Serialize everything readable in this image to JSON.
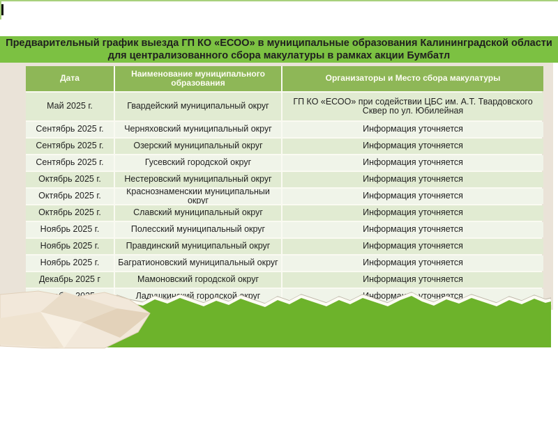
{
  "colors": {
    "top-strip": "#a8d07c",
    "title-band": "#7cc142",
    "table-header": "#8eb757",
    "header-text": "#fcfcf2",
    "row-odd": "#e1ebd2",
    "row-even": "#f0f4e9",
    "backdrop": "#eae3d8",
    "torn-green": "#6db32b",
    "text": "#1f1f1f",
    "paper-base": "#f2e8da",
    "paper-mid": "#e9dcc8",
    "paper-dark": "#e3d2ba",
    "paper-light": "#f7efe2"
  },
  "title": {
    "line1": "Предварительный график выезда ГП КО «ЕСОО» в муниципальные образования Калининградской области",
    "line2": "для централизованного сбора макулатуры в рамках акции Бумбатл"
  },
  "table": {
    "headers": [
      "Дата",
      "Наименование муниципального образования",
      "Организаторы и Место сбора макулатуры"
    ],
    "rows": [
      {
        "date": "Май 2025 г.",
        "municipality": "Гвардейский муниципальный округ",
        "org": [
          "ГП КО «ЕСОО» при содействии ЦБС им. А.Т. Твардовского",
          "Сквер по ул. Юбилейная"
        ]
      },
      {
        "date": "Сентябрь 2025 г.",
        "municipality": "Черняховский муниципальный округ",
        "org": [
          "Информация уточняется"
        ]
      },
      {
        "date": "Сентябрь 2025 г.",
        "municipality": "Озерский муниципальный округ",
        "org": [
          "Информация уточняется"
        ]
      },
      {
        "date": "Сентябрь 2025 г.",
        "municipality": "Гусевский городской округ",
        "org": [
          "Информация уточняется"
        ]
      },
      {
        "date": "Октябрь 2025 г.",
        "municipality": "Нестеровский  муниципальный округ",
        "org": [
          "Информация уточняется"
        ]
      },
      {
        "date": "Октябрь 2025 г.",
        "municipality": "Краснознаменский муниципальный округ",
        "org": [
          "Информация уточняется"
        ]
      },
      {
        "date": "Октябрь 2025 г.",
        "municipality": "Славский муниципальный округ",
        "org": [
          "Информация уточняется"
        ]
      },
      {
        "date": "Ноябрь 2025 г.",
        "municipality": "Полесский муниципальный округ",
        "org": [
          "Информация уточняется"
        ]
      },
      {
        "date": "Ноябрь 2025 г.",
        "municipality": "Правдинский муниципальный округ",
        "org": [
          "Информация уточняется"
        ]
      },
      {
        "date": "Ноябрь 2025 г.",
        "municipality": "Багратионовский муниципальный округ",
        "org": [
          "Информация уточняется"
        ]
      },
      {
        "date": "Декабрь 2025 г",
        "municipality": "Мамоновский городской округ",
        "org": [
          "Информация уточняется"
        ]
      },
      {
        "date": "Декабрь 2025 г",
        "municipality": "Ладушкинский городской округ",
        "org": [
          "Информация уточняется"
        ]
      }
    ]
  }
}
